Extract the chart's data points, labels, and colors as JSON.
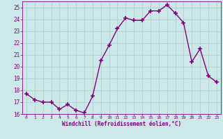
{
  "x": [
    0,
    1,
    2,
    3,
    4,
    5,
    6,
    7,
    8,
    9,
    10,
    11,
    12,
    13,
    14,
    15,
    16,
    17,
    18,
    19,
    20,
    21,
    22,
    23
  ],
  "y": [
    17.7,
    17.2,
    17.0,
    17.0,
    16.4,
    16.8,
    16.3,
    16.1,
    17.5,
    20.5,
    21.8,
    23.2,
    24.1,
    23.9,
    23.9,
    24.7,
    24.7,
    25.2,
    24.5,
    23.7,
    20.4,
    21.5,
    19.2,
    18.7
  ],
  "xlabel": "Windchill (Refroidissement éolien,°C)",
  "xlim": [
    -0.5,
    23.5
  ],
  "ylim": [
    16,
    25.5
  ],
  "yticks": [
    16,
    17,
    18,
    19,
    20,
    21,
    22,
    23,
    24,
    25
  ],
  "xticks": [
    0,
    1,
    2,
    3,
    4,
    5,
    6,
    7,
    8,
    9,
    10,
    11,
    12,
    13,
    14,
    15,
    16,
    17,
    18,
    19,
    20,
    21,
    22,
    23
  ],
  "line_color": "#800080",
  "marker": "+",
  "bg_color": "#cce8e8",
  "grid_color": "#aacccc",
  "tick_color": "#800080",
  "label_color": "#800080",
  "marker_size": 4,
  "line_width": 1.0
}
